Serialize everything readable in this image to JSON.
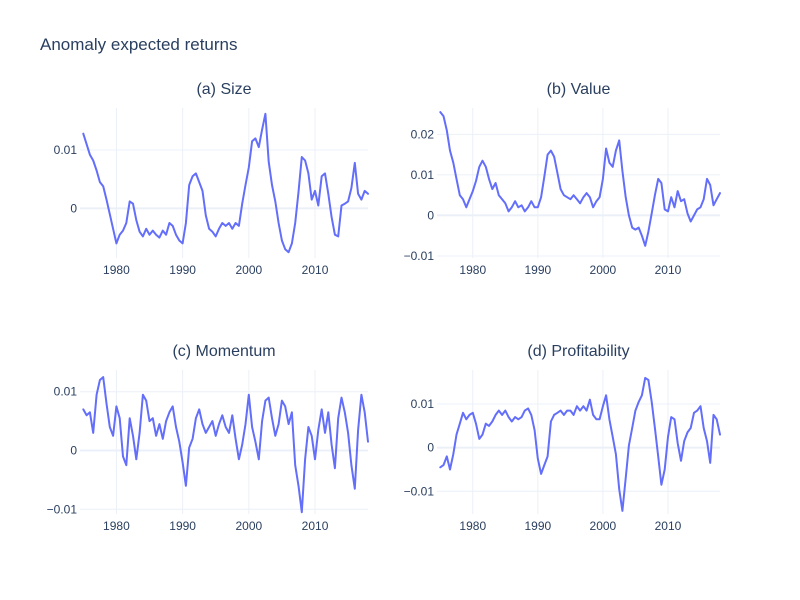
{
  "figure": {
    "title": "Anomaly expected returns"
  },
  "style": {
    "line_color": "#636efa",
    "grid_color": "#ebf0f8",
    "text_color": "#2a3f5f",
    "background": "#ffffff"
  },
  "chart_data": [
    {
      "type": "line",
      "title": "(a) Size",
      "xlim": [
        1974.5,
        2018.0
      ],
      "ylim": [
        -0.0085,
        0.0172
      ],
      "xticks": [
        1980,
        1990,
        2000,
        2010
      ],
      "yticks": [
        {
          "value": 0,
          "label": "0"
        },
        {
          "value": 0.01,
          "label": "0.01"
        }
      ],
      "grid": true,
      "series": [
        {
          "x": [
            1975,
            1975.5,
            1976,
            1976.5,
            1977,
            1977.5,
            1978,
            1978.5,
            1979,
            1979.5,
            1980,
            1980.5,
            1981,
            1981.5,
            1982,
            1982.5,
            1983,
            1983.5,
            1984,
            1984.5,
            1985,
            1985.5,
            1986,
            1986.5,
            1987,
            1987.5,
            1988,
            1988.5,
            1989,
            1989.5,
            1990,
            1990.5,
            1991,
            1991.5,
            1992,
            1992.5,
            1993,
            1993.5,
            1994,
            1994.5,
            1995,
            1995.5,
            1996,
            1996.5,
            1997,
            1997.5,
            1998,
            1998.5,
            1999,
            1999.5,
            2000,
            2000.5,
            2001,
            2001.5,
            2002,
            2002.5,
            2003,
            2003.5,
            2004,
            2004.5,
            2005,
            2005.5,
            2006,
            2006.5,
            2007,
            2007.5,
            2008,
            2008.5,
            2009,
            2009.5,
            2010,
            2010.5,
            2011,
            2011.5,
            2012,
            2012.5,
            2013,
            2013.5,
            2014,
            2014.5,
            2015,
            2015.5,
            2016,
            2016.5,
            2017,
            2017.5,
            2018
          ],
          "y": [
            0.0128,
            0.011,
            0.0092,
            0.0082,
            0.0065,
            0.0045,
            0.0038,
            0.0015,
            -0.001,
            -0.0035,
            -0.006,
            -0.0045,
            -0.0038,
            -0.0025,
            0.0012,
            0.0008,
            -0.002,
            -0.004,
            -0.0048,
            -0.0035,
            -0.0045,
            -0.0038,
            -0.0045,
            -0.005,
            -0.0038,
            -0.0045,
            -0.0025,
            -0.003,
            -0.0045,
            -0.0055,
            -0.006,
            -0.0025,
            0.004,
            0.0055,
            0.006,
            0.0045,
            0.003,
            -0.0012,
            -0.0035,
            -0.004,
            -0.0048,
            -0.0035,
            -0.0025,
            -0.003,
            -0.0025,
            -0.0035,
            -0.0025,
            -0.003,
            0.0008,
            0.004,
            0.007,
            0.0115,
            0.012,
            0.0105,
            0.0135,
            0.0162,
            0.008,
            0.004,
            0.0012,
            -0.0025,
            -0.0055,
            -0.007,
            -0.0075,
            -0.006,
            -0.0025,
            0.0028,
            0.0088,
            0.0082,
            0.006,
            0.0015,
            0.003,
            0.0005,
            0.0055,
            0.006,
            0.0025,
            -0.0015,
            -0.0045,
            -0.0048,
            0.0005,
            0.0008,
            0.0012,
            0.0035,
            0.0078,
            0.0025,
            0.0015,
            0.003,
            0.0025
          ]
        }
      ]
    },
    {
      "type": "line",
      "title": "(b) Value",
      "xlim": [
        1974.5,
        2018.0
      ],
      "ylim": [
        -0.0105,
        0.0265
      ],
      "xticks": [
        1980,
        1990,
        2000,
        2010
      ],
      "yticks": [
        {
          "value": -0.01,
          "label": "−0.01"
        },
        {
          "value": 0,
          "label": "0"
        },
        {
          "value": 0.01,
          "label": "0.01"
        },
        {
          "value": 0.02,
          "label": "0.02"
        }
      ],
      "grid": true,
      "series": [
        {
          "x": [
            1975,
            1975.5,
            1976,
            1976.5,
            1977,
            1977.5,
            1978,
            1978.5,
            1979,
            1979.5,
            1980,
            1980.5,
            1981,
            1981.5,
            1982,
            1982.5,
            1983,
            1983.5,
            1984,
            1984.5,
            1985,
            1985.5,
            1986,
            1986.5,
            1987,
            1987.5,
            1988,
            1988.5,
            1989,
            1989.5,
            1990,
            1990.5,
            1991,
            1991.5,
            1992,
            1992.5,
            1993,
            1993.5,
            1994,
            1994.5,
            1995,
            1995.5,
            1996,
            1996.5,
            1997,
            1997.5,
            1998,
            1998.5,
            1999,
            1999.5,
            2000,
            2000.5,
            2001,
            2001.5,
            2002,
            2002.5,
            2003,
            2003.5,
            2004,
            2004.5,
            2005,
            2005.5,
            2006,
            2006.5,
            2007,
            2007.5,
            2008,
            2008.5,
            2009,
            2009.5,
            2010,
            2010.5,
            2011,
            2011.5,
            2012,
            2012.5,
            2013,
            2013.5,
            2014,
            2014.5,
            2015,
            2015.5,
            2016,
            2016.5,
            2017,
            2017.5,
            2018
          ],
          "y": [
            0.0255,
            0.0245,
            0.021,
            0.016,
            0.013,
            0.009,
            0.005,
            0.004,
            0.002,
            0.004,
            0.006,
            0.0085,
            0.012,
            0.0135,
            0.012,
            0.009,
            0.0065,
            0.008,
            0.005,
            0.004,
            0.003,
            0.001,
            0.002,
            0.0035,
            0.002,
            0.0025,
            0.001,
            0.002,
            0.0035,
            0.002,
            0.002,
            0.0045,
            0.0095,
            0.015,
            0.016,
            0.0145,
            0.0105,
            0.0065,
            0.005,
            0.0045,
            0.004,
            0.005,
            0.004,
            0.003,
            0.0045,
            0.0055,
            0.0045,
            0.002,
            0.0035,
            0.0045,
            0.009,
            0.0165,
            0.013,
            0.012,
            0.016,
            0.0185,
            0.011,
            0.0045,
            0.0,
            -0.003,
            -0.0035,
            -0.003,
            -0.005,
            -0.0075,
            -0.004,
            0.0005,
            0.005,
            0.009,
            0.008,
            0.0015,
            0.001,
            0.0045,
            0.002,
            0.006,
            0.0035,
            0.004,
            0.0005,
            -0.0015,
            0.0,
            0.0015,
            0.002,
            0.004,
            0.009,
            0.0075,
            0.0025,
            0.004,
            0.0055
          ]
        }
      ]
    },
    {
      "type": "line",
      "title": "(c) Momentum",
      "xlim": [
        1974.5,
        2018.0
      ],
      "ylim": [
        -0.0108,
        0.0137
      ],
      "xticks": [
        1980,
        1990,
        2000,
        2010
      ],
      "yticks": [
        {
          "value": -0.01,
          "label": "−0.01"
        },
        {
          "value": 0,
          "label": "0"
        },
        {
          "value": 0.01,
          "label": "0.01"
        }
      ],
      "grid": true,
      "series": [
        {
          "x": [
            1975,
            1975.5,
            1976,
            1976.5,
            1977,
            1977.5,
            1978,
            1978.5,
            1979,
            1979.5,
            1980,
            1980.5,
            1981,
            1981.5,
            1982,
            1982.5,
            1983,
            1983.5,
            1984,
            1984.5,
            1985,
            1985.5,
            1986,
            1986.5,
            1987,
            1987.5,
            1988,
            1988.5,
            1989,
            1989.5,
            1990,
            1990.5,
            1991,
            1991.5,
            1992,
            1992.5,
            1993,
            1993.5,
            1994,
            1994.5,
            1995,
            1995.5,
            1996,
            1996.5,
            1997,
            1997.5,
            1998,
            1998.5,
            1999,
            1999.5,
            2000,
            2000.5,
            2001,
            2001.5,
            2002,
            2002.5,
            2003,
            2003.5,
            2004,
            2004.5,
            2005,
            2005.5,
            2006,
            2006.5,
            2007,
            2007.5,
            2008,
            2008.5,
            2009,
            2009.5,
            2010,
            2010.5,
            2011,
            2011.5,
            2012,
            2012.5,
            2013,
            2013.5,
            2014,
            2014.5,
            2015,
            2015.5,
            2016,
            2016.5,
            2017,
            2017.5,
            2018
          ],
          "y": [
            0.007,
            0.006,
            0.0065,
            0.003,
            0.0095,
            0.012,
            0.0125,
            0.008,
            0.004,
            0.0025,
            0.0075,
            0.0055,
            -0.001,
            -0.0025,
            0.0055,
            0.0025,
            -0.0015,
            0.003,
            0.0095,
            0.0085,
            0.005,
            0.0055,
            0.0025,
            0.0045,
            0.002,
            0.005,
            0.0065,
            0.0075,
            0.004,
            0.0015,
            -0.002,
            -0.006,
            0.0005,
            0.002,
            0.0055,
            0.007,
            0.0045,
            0.003,
            0.004,
            0.005,
            0.0025,
            0.0045,
            0.006,
            0.004,
            0.003,
            0.006,
            0.002,
            -0.0015,
            0.001,
            0.0045,
            0.0095,
            0.004,
            0.0015,
            -0.0015,
            0.005,
            0.0085,
            0.009,
            0.0055,
            0.0025,
            0.0045,
            0.0085,
            0.0075,
            0.0045,
            0.0065,
            -0.0025,
            -0.006,
            -0.0105,
            -0.0015,
            0.004,
            0.0025,
            -0.0015,
            0.0035,
            0.007,
            0.003,
            0.0065,
            0.001,
            -0.003,
            0.0055,
            0.009,
            0.0065,
            0.003,
            -0.0025,
            -0.0065,
            0.0035,
            0.0095,
            0.0065,
            0.0015
          ]
        }
      ]
    },
    {
      "type": "line",
      "title": "(d) Profitability",
      "xlim": [
        1974.5,
        2018.0
      ],
      "ylim": [
        -0.0152,
        0.0178
      ],
      "xticks": [
        1980,
        1990,
        2000,
        2010
      ],
      "yticks": [
        {
          "value": -0.01,
          "label": "−0.01"
        },
        {
          "value": 0,
          "label": "0"
        },
        {
          "value": 0.01,
          "label": "0.01"
        }
      ],
      "grid": true,
      "series": [
        {
          "x": [
            1975,
            1975.5,
            1976,
            1976.5,
            1977,
            1977.5,
            1978,
            1978.5,
            1979,
            1979.5,
            1980,
            1980.5,
            1981,
            1981.5,
            1982,
            1982.5,
            1983,
            1983.5,
            1984,
            1984.5,
            1985,
            1985.5,
            1986,
            1986.5,
            1987,
            1987.5,
            1988,
            1988.5,
            1989,
            1989.5,
            1990,
            1990.5,
            1991,
            1991.5,
            1992,
            1992.5,
            1993,
            1993.5,
            1994,
            1994.5,
            1995,
            1995.5,
            1996,
            1996.5,
            1997,
            1997.5,
            1998,
            1998.5,
            1999,
            1999.5,
            2000,
            2000.5,
            2001,
            2001.5,
            2002,
            2002.5,
            2003,
            2003.5,
            2004,
            2004.5,
            2005,
            2005.5,
            2006,
            2006.5,
            2007,
            2007.5,
            2008,
            2008.5,
            2009,
            2009.5,
            2010,
            2010.5,
            2011,
            2011.5,
            2012,
            2012.5,
            2013,
            2013.5,
            2014,
            2014.5,
            2015,
            2015.5,
            2016,
            2016.5,
            2017,
            2017.5,
            2018
          ],
          "y": [
            -0.0045,
            -0.004,
            -0.002,
            -0.005,
            -0.0015,
            0.003,
            0.0055,
            0.008,
            0.0065,
            0.0075,
            0.008,
            0.0055,
            0.002,
            0.003,
            0.0055,
            0.005,
            0.006,
            0.0075,
            0.0085,
            0.0075,
            0.0085,
            0.007,
            0.006,
            0.007,
            0.0065,
            0.007,
            0.0085,
            0.009,
            0.0075,
            0.004,
            -0.0025,
            -0.006,
            -0.004,
            -0.002,
            0.006,
            0.0075,
            0.008,
            0.0085,
            0.0075,
            0.0085,
            0.0085,
            0.0075,
            0.0095,
            0.0085,
            0.0095,
            0.0085,
            0.011,
            0.0075,
            0.0065,
            0.0065,
            0.0095,
            0.012,
            0.0065,
            0.0025,
            -0.0015,
            -0.0095,
            -0.0145,
            -0.007,
            0.0005,
            0.0045,
            0.0085,
            0.0105,
            0.012,
            0.016,
            0.0155,
            0.0105,
            0.0045,
            -0.002,
            -0.0085,
            -0.005,
            0.0025,
            0.007,
            0.0065,
            0.001,
            -0.003,
            0.0015,
            0.0035,
            0.0045,
            0.008,
            0.0085,
            0.0095,
            0.0045,
            0.0015,
            -0.0035,
            0.0075,
            0.0065,
            0.003
          ]
        }
      ]
    }
  ]
}
